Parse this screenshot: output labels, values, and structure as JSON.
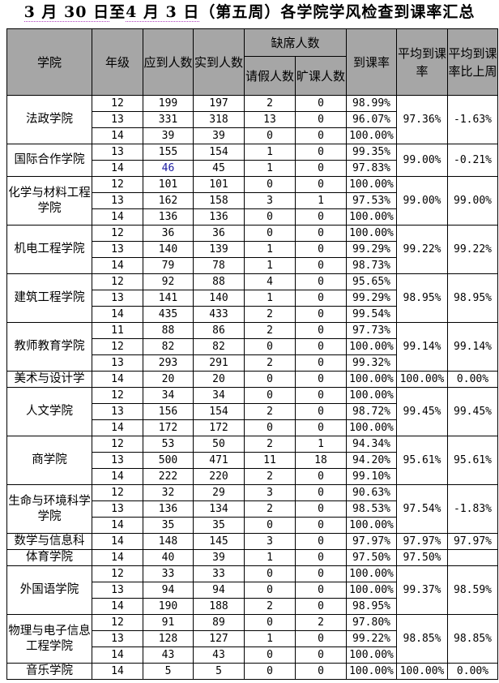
{
  "title": {
    "p1": "3 月 30 日",
    "p2": "至",
    "p3": "4 月 3 日",
    "p4": "（第五周）各学院学风检查到课率汇总"
  },
  "headers": {
    "college": "学院",
    "grade": "年级",
    "expected": "应到人数",
    "actual": "实到人数",
    "absent": "缺席人数",
    "leave": "请假人数",
    "truant": "旷课人数",
    "rate": "到课率",
    "avg_rate": "平均到课率",
    "vs_last_week": "平均到课率比上周"
  },
  "groups": [
    {
      "college": "法政学院",
      "avg": "97.36%",
      "vs": "-1.63%",
      "rows": [
        [
          "12",
          "199",
          "197",
          "2",
          "0",
          "98.99%"
        ],
        [
          "13",
          "331",
          "318",
          "13",
          "0",
          "96.07%"
        ],
        [
          "14",
          "39",
          "39",
          "0",
          "0",
          "100.00%"
        ]
      ]
    },
    {
      "college": "国际合作学院",
      "avg": "99.00%",
      "vs": "-0.21%",
      "rows": [
        [
          "13",
          "155",
          "154",
          "1",
          "0",
          "99.35%"
        ],
        [
          "14",
          "46",
          "45",
          "1",
          "0",
          "97.83%"
        ]
      ]
    },
    {
      "college": "化学与材料工程学院",
      "avg": "99.00%",
      "vs": "99.00%",
      "rows": [
        [
          "12",
          "101",
          "101",
          "0",
          "0",
          "100.00%"
        ],
        [
          "13",
          "162",
          "158",
          "3",
          "1",
          "97.53%"
        ],
        [
          "14",
          "136",
          "136",
          "0",
          "0",
          "100.00%"
        ]
      ]
    },
    {
      "college": "机电工程学院",
      "avg": "99.22%",
      "vs": "99.22%",
      "rows": [
        [
          "12",
          "36",
          "36",
          "0",
          "0",
          "100.00%"
        ],
        [
          "13",
          "140",
          "139",
          "1",
          "0",
          "99.29%"
        ],
        [
          "14",
          "79",
          "78",
          "1",
          "0",
          "98.73%"
        ]
      ]
    },
    {
      "college": "建筑工程学院",
      "avg": "98.95%",
      "vs": "98.95%",
      "rows": [
        [
          "12",
          "92",
          "88",
          "4",
          "0",
          "95.65%"
        ],
        [
          "13",
          "141",
          "140",
          "1",
          "0",
          "99.29%"
        ],
        [
          "14",
          "435",
          "433",
          "2",
          "0",
          "99.54%"
        ]
      ]
    },
    {
      "college": "教师教育学院",
      "avg": "99.14%",
      "vs": "99.14%",
      "rows": [
        [
          "11",
          "88",
          "86",
          "2",
          "0",
          "97.73%"
        ],
        [
          "12",
          "82",
          "82",
          "0",
          "0",
          "100.00%"
        ],
        [
          "13",
          "293",
          "291",
          "2",
          "0",
          "99.32%"
        ]
      ]
    },
    {
      "college": "美术与设计学",
      "avg": "100.00%",
      "vs": "0.00%",
      "rows": [
        [
          "14",
          "20",
          "20",
          "0",
          "0",
          "100.00%"
        ]
      ]
    },
    {
      "college": "人文学院",
      "avg": "99.45%",
      "vs": "99.45%",
      "rows": [
        [
          "12",
          "34",
          "34",
          "0",
          "0",
          "100.00%"
        ],
        [
          "13",
          "156",
          "154",
          "2",
          "0",
          "98.72%"
        ],
        [
          "14",
          "172",
          "172",
          "0",
          "0",
          "100.00%"
        ]
      ]
    },
    {
      "college": "商学院",
      "avg": "95.61%",
      "vs": "95.61%",
      "rows": [
        [
          "12",
          "53",
          "50",
          "2",
          "1",
          "94.34%"
        ],
        [
          "13",
          "500",
          "471",
          "11",
          "18",
          "94.20%"
        ],
        [
          "14",
          "222",
          "220",
          "2",
          "0",
          "99.10%"
        ]
      ]
    },
    {
      "college": "生命与环境科学学院",
      "avg": "97.54%",
      "vs": "-1.83%",
      "rows": [
        [
          "12",
          "32",
          "29",
          "3",
          "0",
          "90.63%"
        ],
        [
          "13",
          "136",
          "134",
          "2",
          "0",
          "98.53%"
        ],
        [
          "14",
          "35",
          "35",
          "0",
          "0",
          "100.00%"
        ]
      ]
    },
    {
      "college": "数学与信息科",
      "avg": "97.97%",
      "vs": "97.97%",
      "rows": [
        [
          "14",
          "148",
          "145",
          "3",
          "0",
          "97.97%"
        ]
      ]
    },
    {
      "college": "体育学院",
      "avg": "97.50%",
      "vs": "",
      "rows": [
        [
          "14",
          "40",
          "39",
          "1",
          "0",
          "97.50%"
        ]
      ]
    },
    {
      "college": "外国语学院",
      "avg": "99.37%",
      "vs": "98.59%",
      "rows": [
        [
          "12",
          "33",
          "33",
          "0",
          "0",
          "100.00%"
        ],
        [
          "13",
          "94",
          "94",
          "0",
          "0",
          "100.00%"
        ],
        [
          "14",
          "190",
          "188",
          "2",
          "0",
          "98.95%"
        ]
      ]
    },
    {
      "college": "物理与电子信息工程学院",
      "avg": "98.85%",
      "vs": "98.85%",
      "rows": [
        [
          "12",
          "91",
          "89",
          "0",
          "2",
          "97.80%"
        ],
        [
          "13",
          "128",
          "127",
          "1",
          "0",
          "99.22%"
        ],
        [
          "14",
          "43",
          "43",
          "0",
          "0",
          "100.00%"
        ]
      ]
    },
    {
      "college": "音乐学院",
      "avg": "100.00%",
      "vs": "0.00%",
      "rows": [
        [
          "14",
          "5",
          "5",
          "0",
          "0",
          "100.00%"
        ]
      ]
    }
  ],
  "highlight_color": "#1a1aa0",
  "header_bg": "#a6a6a6"
}
